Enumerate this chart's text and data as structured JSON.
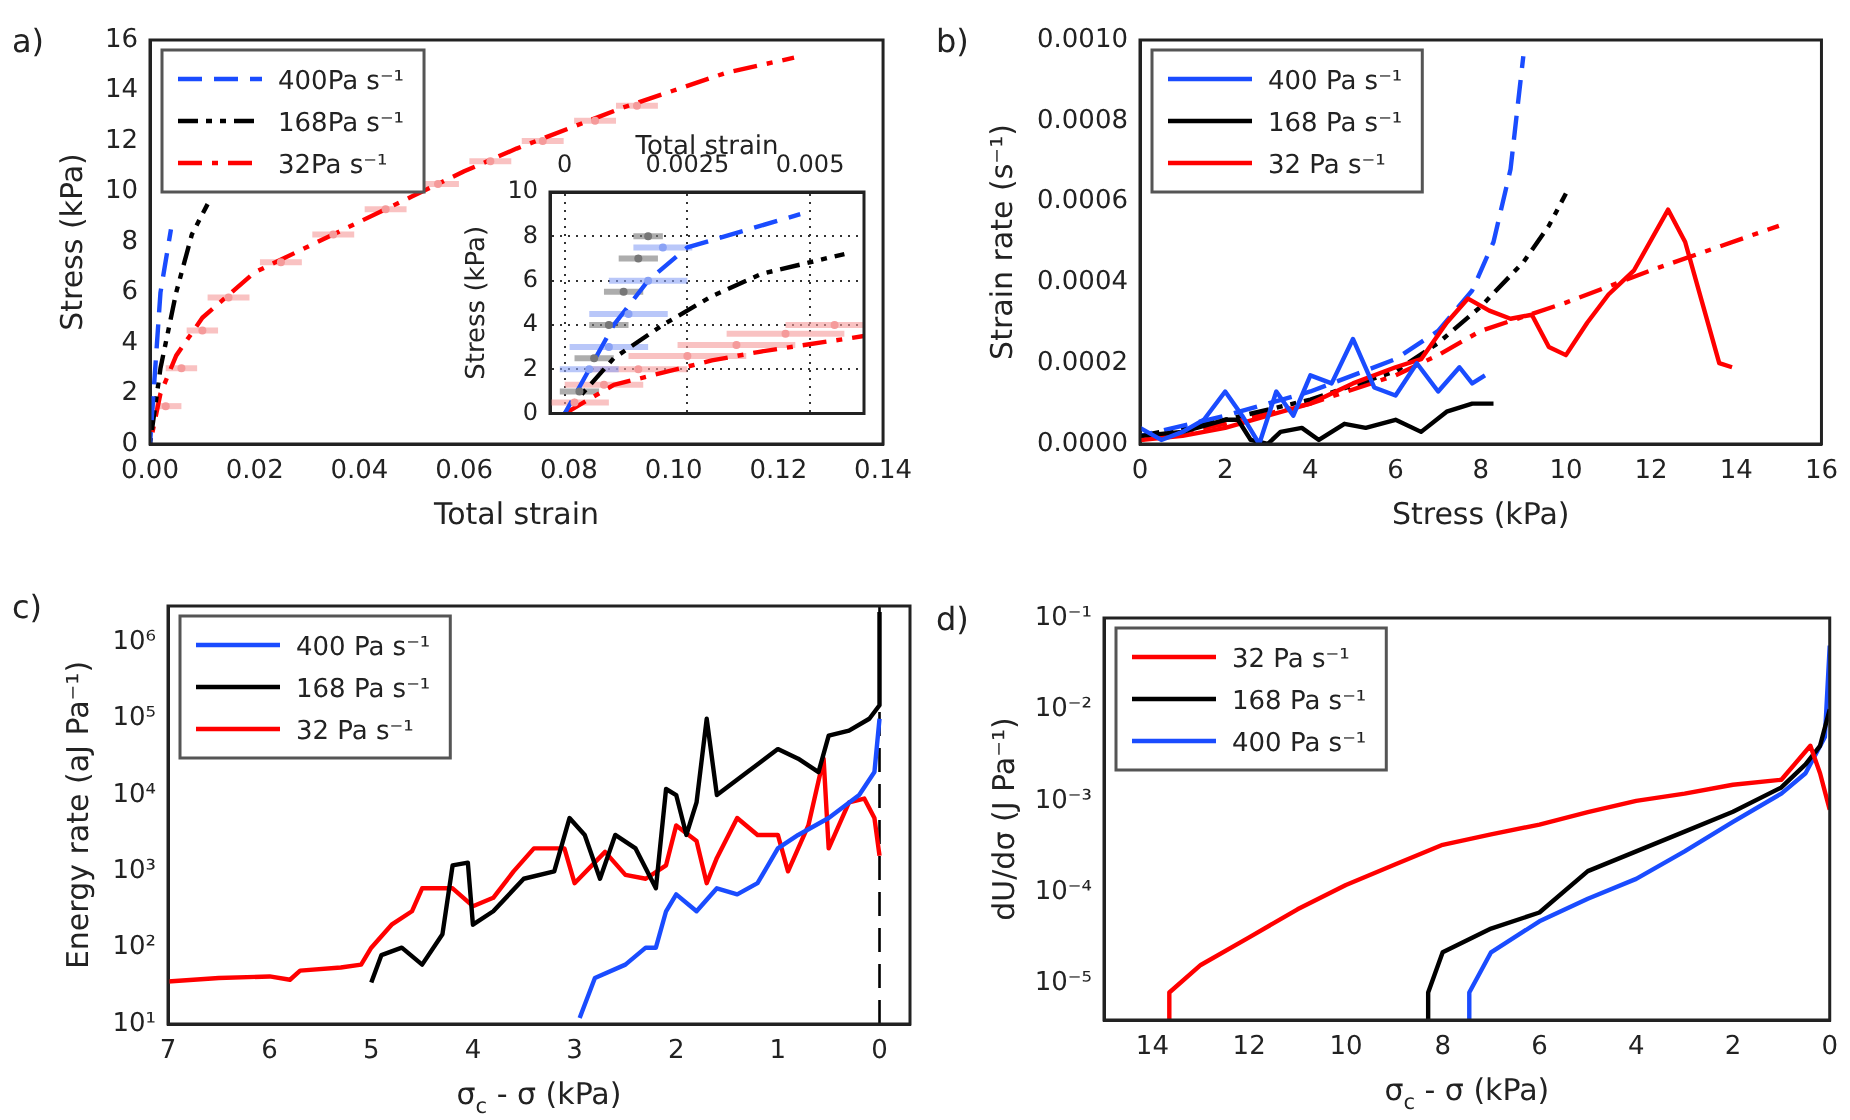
{
  "chart_data": [
    {
      "type": "line",
      "title": "a)",
      "xlabel": "Total strain",
      "ylabel": "Stress (kPa)",
      "xlim": [
        0,
        0.14
      ],
      "xticks": [
        {
          "value": 0,
          "label": "0.00"
        },
        {
          "value": 0.02,
          "label": "0.02"
        },
        {
          "value": 0.04,
          "label": "0.04"
        },
        {
          "value": 0.06,
          "label": "0.06"
        },
        {
          "value": 0.08,
          "label": "0.08"
        },
        {
          "value": 0.1,
          "label": "0.10"
        },
        {
          "value": 0.12,
          "label": "0.12"
        },
        {
          "value": 0.14,
          "label": "0.14"
        }
      ],
      "ylim": [
        0,
        16
      ],
      "yticks": [
        0,
        2,
        4,
        6,
        8,
        10,
        12,
        14,
        16
      ],
      "legend": "top left",
      "series": [
        {
          "type": "scatter",
          "marker": "circle",
          "color": "#f59a9a",
          "x": [
            0.003,
            0.006,
            0.01,
            0.015,
            0.025,
            0.035,
            0.045,
            0.055,
            0.065,
            0.075,
            0.085,
            0.093
          ],
          "values": [
            1.5,
            3,
            4.5,
            5.8,
            7.2,
            8.3,
            9.3,
            10.3,
            11.2,
            12,
            12.8,
            13.4
          ],
          "xerrors": [
            0.003,
            0.003,
            0.003,
            0.004,
            0.004,
            0.004,
            0.004,
            0.004,
            0.004,
            0.004,
            0.004,
            0.004
          ]
        },
        {
          "name": "400Pa s⁻¹",
          "color": "#1a4cff",
          "line_style": "dashed",
          "x": [
            0,
            0.001,
            0.002,
            0.004
          ],
          "values": [
            0,
            3,
            6,
            8.5
          ]
        },
        {
          "name": "168Pa s⁻¹",
          "color": "#000000",
          "line_style": "dashdotdot",
          "x": [
            0,
            0.002,
            0.005,
            0.008,
            0.011
          ],
          "values": [
            0,
            3,
            6,
            8.3,
            9.5
          ]
        },
        {
          "name": "32Pa s⁻¹",
          "color": "#ff0000",
          "line_style": "dashdot",
          "x": [
            0,
            0.002,
            0.005,
            0.01,
            0.02,
            0.03,
            0.04,
            0.05,
            0.06,
            0.07,
            0.08,
            0.09,
            0.1,
            0.11,
            0.123
          ],
          "values": [
            0,
            2,
            3.5,
            5,
            6.8,
            7.8,
            8.8,
            9.8,
            10.8,
            11.7,
            12.5,
            13.3,
            14,
            14.7,
            15.3
          ]
        }
      ]
    },
    {
      "type": "line",
      "xlabel": "Total strain",
      "ylabel": "Stress (kPa)",
      "xlim": [
        -0.0003,
        0.0061
      ],
      "xticks": [
        0,
        0.0025,
        0.005
      ],
      "ylim": [
        0,
        10
      ],
      "yticks": [
        0,
        2,
        4,
        6,
        8,
        10
      ],
      "grid": true,
      "series": [
        {
          "type": "scatter",
          "marker": "circle",
          "color": "#f59a9a",
          "x": [
            0.0002,
            0.0008,
            0.0015,
            0.0025,
            0.0035,
            0.0045,
            0.0055
          ],
          "values": [
            0.5,
            1.3,
            2,
            2.6,
            3.1,
            3.6,
            4
          ],
          "xerrors": [
            0.0007,
            0.0008,
            0.001,
            0.0012,
            0.0012,
            0.0012,
            0.001
          ]
        },
        {
          "type": "scatter",
          "marker": "circle",
          "color": "#8aa2f5",
          "x": [
            0.0005,
            0.0009,
            0.0013,
            0.0017,
            0.002
          ],
          "values": [
            2,
            3,
            4.5,
            6,
            7.5
          ],
          "xerrors": [
            0.0006,
            0.0008,
            0.0008,
            0.0008,
            0.0006
          ]
        },
        {
          "type": "scatter",
          "marker": "circle",
          "color": "#777777",
          "x": [
            0.0003,
            0.0006,
            0.0009,
            0.0012,
            0.0015,
            0.0017
          ],
          "values": [
            1,
            2.5,
            4,
            5.5,
            7,
            8
          ],
          "xerrors": [
            0.0004,
            0.0004,
            0.0004,
            0.0004,
            0.0004,
            0.0003
          ]
        },
        {
          "color": "#1a4cff",
          "line_style": "dashed",
          "x": [
            0,
            0.0005,
            0.001,
            0.0017,
            0.0025,
            0.0048
          ],
          "values": [
            0,
            2,
            4,
            6,
            7.5,
            9
          ]
        },
        {
          "color": "#000000",
          "line_style": "dashdotdot",
          "x": [
            0,
            0.001,
            0.002,
            0.003,
            0.004,
            0.0057
          ],
          "values": [
            0,
            2.5,
            4,
            5.3,
            6.3,
            7.2
          ]
        },
        {
          "color": "#ff0000",
          "line_style": "dashdot",
          "x": [
            0,
            0.001,
            0.00246,
            0.003,
            0.004,
            0.0061
          ],
          "values": [
            0,
            1.3,
            2.1,
            2.4,
            2.8,
            3.5
          ]
        }
      ]
    },
    {
      "type": "line",
      "title": "b)",
      "xlabel": "Stress (kPa)",
      "ylabel": "Strain rate (s⁻¹)",
      "xlim": [
        0,
        16
      ],
      "xticks": [
        0,
        2,
        4,
        6,
        8,
        10,
        12,
        14,
        16
      ],
      "ylim": [
        0,
        0.001
      ],
      "yticks": [
        {
          "value": 0,
          "label": "0.0000"
        },
        {
          "value": 0.0002,
          "label": "0.0002"
        },
        {
          "value": 0.0004,
          "label": "0.0004"
        },
        {
          "value": 0.0006,
          "label": "0.0006"
        },
        {
          "value": 0.0008,
          "label": "0.0008"
        },
        {
          "value": 0.001,
          "label": "0.0010"
        }
      ],
      "legend": "top left",
      "series": [
        {
          "name": "400 Pa s⁻¹",
          "color": "#1a4cff",
          "x": [
            0,
            0.5,
            1,
            1.5,
            2,
            2.4,
            2.8,
            3.2,
            3.6,
            4,
            4.5,
            5,
            5.5,
            6,
            6.5,
            7,
            7.5,
            7.8,
            8.1
          ],
          "values": [
            4e-05,
            1e-05,
            3e-05,
            6e-05,
            0.00013,
            7e-05,
            0,
            0.00013,
            7e-05,
            0.00017,
            0.00015,
            0.00026,
            0.00014,
            0.00012,
            0.0002,
            0.00013,
            0.00019,
            0.00015,
            0.00017
          ]
        },
        {
          "name": "168 Pa s⁻¹",
          "color": "#000000",
          "x": [
            0,
            1,
            2,
            2.3,
            2.6,
            3,
            3.3,
            3.8,
            4.2,
            4.8,
            5.3,
            6,
            6.6,
            7.2,
            7.8,
            8.3
          ],
          "values": [
            2e-05,
            3e-05,
            6e-05,
            6e-05,
            1e-05,
            0,
            3e-05,
            4e-05,
            1e-05,
            5e-05,
            4e-05,
            6e-05,
            3e-05,
            8e-05,
            0.0001,
            0.0001
          ]
        },
        {
          "name": "32 Pa s⁻¹",
          "color": "#ff0000",
          "x": [
            0,
            1,
            2,
            3,
            4,
            5,
            6,
            6.6,
            7.2,
            7.7,
            8.2,
            8.7,
            9.2,
            9.6,
            10,
            10.5,
            11,
            11.6,
            12.4,
            12.8,
            13.2,
            13.6,
            13.9
          ],
          "values": [
            1e-05,
            2e-05,
            4e-05,
            7e-05,
            0.0001,
            0.00015,
            0.00019,
            0.00021,
            0.0003,
            0.00036,
            0.00033,
            0.00031,
            0.00032,
            0.00024,
            0.00022,
            0.0003,
            0.00037,
            0.00043,
            0.00058,
            0.0005,
            0.00035,
            0.0002,
            0.00019
          ]
        },
        {
          "color": "#1a4cff",
          "line_style": "dashed",
          "x": [
            0,
            2,
            4,
            6,
            7,
            7.8,
            8.3,
            8.7,
            9
          ],
          "values": [
            2e-05,
            7e-05,
            0.00013,
            0.00021,
            0.00028,
            0.00038,
            0.0005,
            0.00068,
            0.00096
          ]
        },
        {
          "color": "#000000",
          "line_style": "dashdotdot",
          "x": [
            0,
            2,
            4,
            6,
            7,
            8,
            9,
            9.6,
            10
          ],
          "values": [
            2e-05,
            6e-05,
            0.00011,
            0.00018,
            0.00025,
            0.00034,
            0.00045,
            0.00054,
            0.00062
          ]
        },
        {
          "color": "#ff0000",
          "line_style": "dashdot",
          "x": [
            0,
            2,
            4,
            6,
            7,
            8,
            10,
            12,
            15
          ],
          "values": [
            1e-05,
            5e-05,
            0.0001,
            0.00017,
            0.00022,
            0.00028,
            0.00035,
            0.00043,
            0.00054
          ]
        }
      ]
    },
    {
      "type": "line",
      "title": "c)",
      "xlabel": "σ$_{c}$ - σ (kPa)",
      "ylabel": "Energy rate (aJ Pa⁻¹)",
      "log": "y",
      "xlim": [
        7,
        -0.3
      ],
      "xticks": [
        7,
        6,
        5,
        4,
        3,
        2,
        1,
        0
      ],
      "ylim": [
        10,
        3000000
      ],
      "yticks": [
        {
          "value": 10,
          "label": "10¹"
        },
        {
          "value": 100,
          "label": "10²"
        },
        {
          "value": 1000,
          "label": "10³"
        },
        {
          "value": 10000,
          "label": "10⁴"
        },
        {
          "value": 100000,
          "label": "10⁵"
        },
        {
          "value": 1000000,
          "label": "10⁶"
        }
      ],
      "legend": "top left",
      "ref_lines": [
        {
          "axis": "x",
          "value": 0,
          "color": "#000000",
          "line_style": "dashed"
        }
      ],
      "series": [
        {
          "name": "400 Pa s⁻¹",
          "color": "#1a4cff",
          "x": [
            2.95,
            2.8,
            2.5,
            2.3,
            2.2,
            2.1,
            2,
            1.8,
            1.6,
            1.4,
            1.2,
            1,
            0.8,
            0.5,
            0.2,
            0.05,
            0
          ],
          "values": [
            12,
            40,
            60,
            100,
            100,
            300,
            500,
            300,
            600,
            500,
            700,
            2000,
            3000,
            5000,
            10000,
            20000,
            100000
          ]
        },
        {
          "name": "168 Pa s⁻¹",
          "color": "#000000",
          "x": [
            5,
            4.9,
            4.7,
            4.5,
            4.3,
            4.2,
            4.05,
            4,
            3.8,
            3.5,
            3.2,
            3.05,
            2.9,
            2.75,
            2.6,
            2.4,
            2.2,
            2.1,
            2,
            1.9,
            1.8,
            1.7,
            1.6,
            1.3,
            1,
            0.8,
            0.6,
            0.5,
            0.3,
            0.1,
            0,
            0
          ],
          "values": [
            35,
            80,
            100,
            60,
            150,
            1200,
            1300,
            200,
            300,
            800,
            1000,
            5000,
            3000,
            800,
            3000,
            2000,
            600,
            12000,
            10000,
            3000,
            8000,
            100000,
            10000,
            20000,
            40000,
            30000,
            20000,
            60000,
            70000,
            100000,
            150000,
            2500000
          ]
        },
        {
          "name": "32 Pa s⁻¹",
          "color": "#ff0000",
          "x": [
            7,
            6.5,
            6,
            5.8,
            5.7,
            5.3,
            5.1,
            5,
            4.8,
            4.6,
            4.5,
            4.2,
            4,
            3.8,
            3.6,
            3.4,
            3.1,
            3,
            2.7,
            2.5,
            2.3,
            2.1,
            2,
            1.8,
            1.7,
            1.6,
            1.4,
            1.2,
            1,
            0.9,
            0.8,
            0.7,
            0.55,
            0.5,
            0.3,
            0.15,
            0.05,
            0
          ],
          "values": [
            36,
            40,
            42,
            38,
            50,
            55,
            60,
            100,
            200,
            300,
            600,
            600,
            350,
            450,
            1000,
            2000,
            2000,
            700,
            1800,
            900,
            800,
            1200,
            4000,
            2500,
            700,
            1500,
            5000,
            3000,
            3000,
            1000,
            2000,
            4000,
            30000,
            2000,
            8000,
            9000,
            5000,
            1600
          ]
        }
      ]
    },
    {
      "type": "line",
      "title": "d)",
      "xlabel": "σ$_{c}$ - σ (kPa)",
      "ylabel": "dU/dσ (J Pa⁻¹)",
      "log": "y",
      "xlim": [
        15,
        0
      ],
      "xticks": [
        14,
        12,
        10,
        8,
        6,
        4,
        2,
        0
      ],
      "ylim": [
        4e-06,
        0.1
      ],
      "yticks": [
        {
          "value": 1e-05,
          "label": "10⁻⁵"
        },
        {
          "value": 0.0001,
          "label": "10⁻⁴"
        },
        {
          "value": 0.001,
          "label": "10⁻³"
        },
        {
          "value": 0.01,
          "label": "10⁻²"
        },
        {
          "value": 0.1,
          "label": "10⁻¹"
        }
      ],
      "legend": "top left",
      "series": [
        {
          "name": "32 Pa s⁻¹",
          "color": "#ff0000",
          "x": [
            13.65,
            13.65,
            13,
            12,
            11,
            10,
            9,
            8,
            7,
            6,
            5,
            4,
            3,
            2,
            1,
            0.4,
            0.2,
            0.05,
            0
          ],
          "values": [
            4e-06,
            8e-06,
            1.6e-05,
            3.2e-05,
            6.5e-05,
            0.00012,
            0.0002,
            0.00033,
            0.00043,
            0.00055,
            0.00075,
            0.001,
            0.0012,
            0.0015,
            0.0017,
            0.004,
            0.002,
            0.001,
            0.0008
          ]
        },
        {
          "name": "168 Pa s⁻¹",
          "color": "#000000",
          "x": [
            8.3,
            8.3,
            8,
            7,
            6,
            5,
            4,
            3,
            2,
            1,
            0.5,
            0.2,
            0
          ],
          "values": [
            4e-06,
            8e-06,
            2.2e-05,
            4e-05,
            6e-05,
            0.00017,
            0.00028,
            0.00046,
            0.00076,
            0.0014,
            0.0025,
            0.004,
            0.01
          ]
        },
        {
          "name": "400 Pa s⁻¹",
          "color": "#1a4cff",
          "x": [
            7.45,
            7.45,
            7,
            6,
            5,
            4,
            3,
            2,
            1,
            0.5,
            0.1,
            0
          ],
          "values": [
            4e-06,
            8e-06,
            2.2e-05,
            4.8e-05,
            8.5e-05,
            0.00014,
            0.00028,
            0.00059,
            0.0012,
            0.002,
            0.005,
            0.05
          ]
        }
      ]
    }
  ]
}
